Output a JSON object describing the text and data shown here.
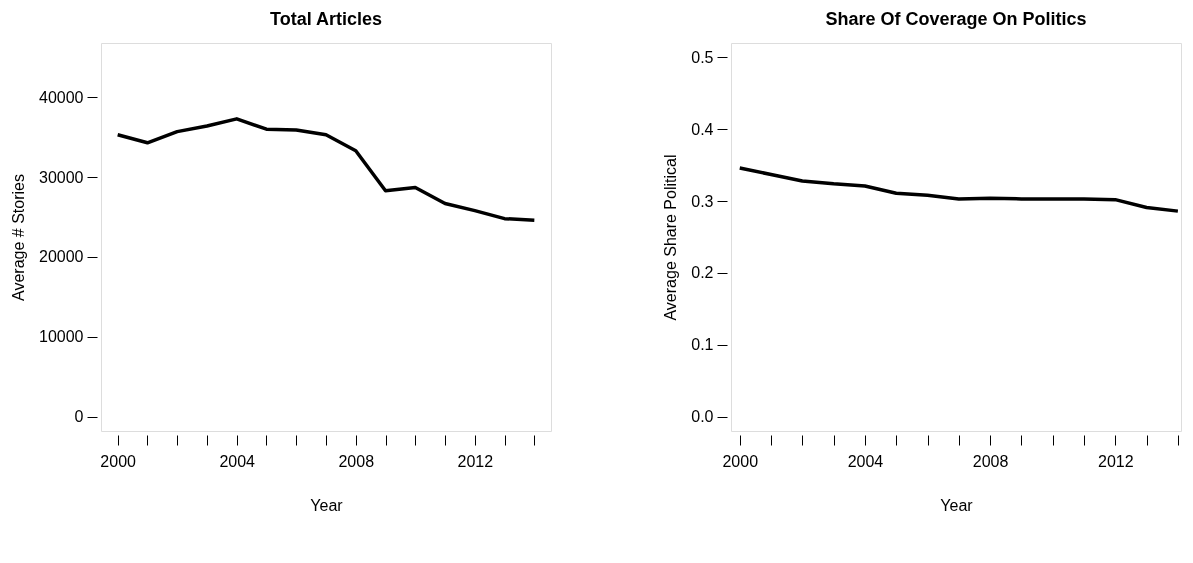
{
  "chart_data": [
    {
      "type": "line",
      "title": "Total Articles",
      "xlabel": "Year",
      "ylabel": "Average # Stories",
      "x": [
        2000,
        2001,
        2002,
        2003,
        2004,
        2005,
        2006,
        2007,
        2008,
        2009,
        2010,
        2011,
        2012,
        2013,
        2014
      ],
      "series": [
        {
          "color": "#000000",
          "values": [
            35300,
            34300,
            35700,
            36400,
            37300,
            36000,
            35900,
            35300,
            33300,
            28300,
            28700,
            26700,
            25800,
            24800,
            24600
          ]
        }
      ],
      "xlim": [
        1999.44,
        2014.56
      ],
      "ylim": [
        -1800,
        46800
      ],
      "xticks": [
        2000,
        {
          "value": 2001,
          "label": null
        },
        {
          "value": 2002,
          "label": null
        },
        {
          "value": 2003,
          "label": null
        },
        2004,
        {
          "value": 2005,
          "label": null
        },
        {
          "value": 2006,
          "label": null
        },
        {
          "value": 2007,
          "label": null
        },
        2008,
        {
          "value": 2009,
          "label": null
        },
        {
          "value": 2010,
          "label": null
        },
        {
          "value": 2011,
          "label": null
        },
        2012,
        {
          "value": 2013,
          "label": null
        },
        {
          "value": 2014,
          "label": null
        }
      ],
      "yticks": [
        0,
        10000,
        20000,
        30000,
        40000
      ],
      "grid": false,
      "marker": "none",
      "line_style": "solid"
    },
    {
      "type": "line",
      "title": "Share Of Coverage On Politics",
      "xlabel": "Year",
      "ylabel": "Average Share Political",
      "x": [
        2000,
        2001,
        2002,
        2003,
        2004,
        2005,
        2006,
        2007,
        2008,
        2009,
        2010,
        2011,
        2012,
        2013,
        2014
      ],
      "series": [
        {
          "color": "#000000",
          "values": [
            0.346,
            0.337,
            0.328,
            0.324,
            0.321,
            0.311,
            0.308,
            0.303,
            0.304,
            0.303,
            0.303,
            0.303,
            0.302,
            0.291,
            0.286
          ]
        }
      ],
      "xlim": [
        1999.72,
        2014.1
      ],
      "ylim": [
        -0.02,
        0.52
      ],
      "xticks": [
        2000,
        {
          "value": 2001,
          "label": null
        },
        {
          "value": 2002,
          "label": null
        },
        {
          "value": 2003,
          "label": null
        },
        2004,
        {
          "value": 2005,
          "label": null
        },
        {
          "value": 2006,
          "label": null
        },
        {
          "value": 2007,
          "label": null
        },
        2008,
        {
          "value": 2009,
          "label": null
        },
        {
          "value": 2010,
          "label": null
        },
        {
          "value": 2011,
          "label": null
        },
        2012,
        {
          "value": 2013,
          "label": null
        },
        {
          "value": 2014,
          "label": null
        }
      ],
      "yticks": [
        {
          "value": 0,
          "label": "0.0"
        },
        0.1,
        0.2,
        0.3,
        0.4,
        0.5
      ],
      "grid": false,
      "marker": "none",
      "line_style": "solid"
    }
  ]
}
